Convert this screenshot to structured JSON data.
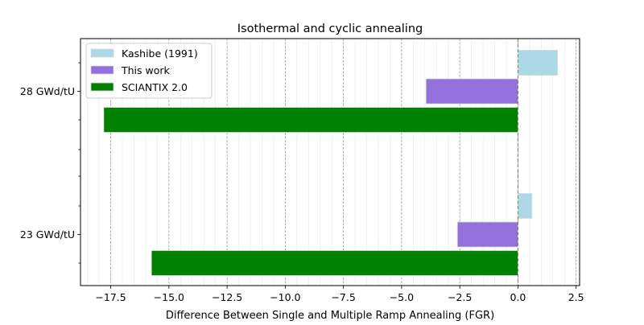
{
  "chart_data": {
    "type": "bar",
    "orientation": "horizontal",
    "title": "Isothermal and cyclic annealing",
    "xlabel": "Difference Between Single and Multiple Ramp Annealing (FGR)",
    "ylabel": "",
    "xlim": [
      -18.8,
      2.65
    ],
    "x_ticks": [
      -17.5,
      -15.0,
      -12.5,
      -10.0,
      -7.5,
      -5.0,
      -2.5,
      0.0,
      2.5
    ],
    "x_tick_labels": [
      "−17.5",
      "−15.0",
      "−12.5",
      "−10.0",
      "−7.5",
      "−5.0",
      "−2.5",
      "0.0",
      "2.5"
    ],
    "categories": [
      "23 GWd/tU",
      "28 GWd/tU"
    ],
    "series": [
      {
        "name": "Kashibe (1991)",
        "color": "#add8e6",
        "values": [
          0.6,
          1.7
        ]
      },
      {
        "name": "This work",
        "color": "#9370db",
        "values": [
          -2.6,
          -3.95
        ]
      },
      {
        "name": "SCIANTIX 2.0",
        "color": "#008000",
        "values": [
          -15.75,
          -17.8
        ]
      }
    ],
    "grid": {
      "x_major": true,
      "x_minor": true,
      "y": false
    },
    "reference_line": {
      "x": 0
    },
    "legend_position": "top-left"
  }
}
